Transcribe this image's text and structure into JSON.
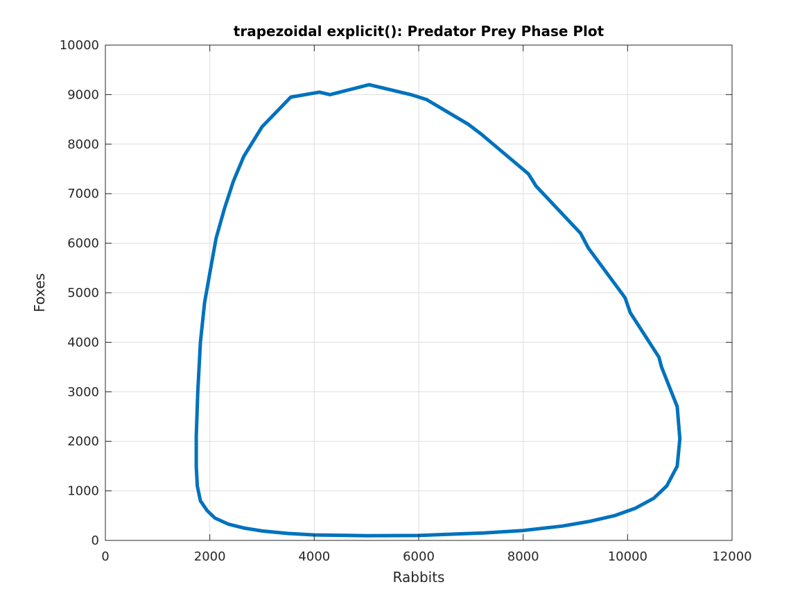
{
  "chart_data": {
    "type": "line",
    "title": "trapezoidal explicit(): Predator Prey Phase Plot",
    "xlabel": "Rabbits",
    "ylabel": "Foxes",
    "xlim": [
      0,
      12000
    ],
    "ylim": [
      0,
      10000
    ],
    "xticks": [
      0,
      2000,
      4000,
      6000,
      8000,
      10000,
      12000
    ],
    "yticks": [
      0,
      1000,
      2000,
      3000,
      4000,
      5000,
      6000,
      7000,
      8000,
      9000,
      10000
    ],
    "xtick_labels": [
      "0",
      "2000",
      "4000",
      "6000",
      "8000",
      "10000",
      "12000"
    ],
    "ytick_labels": [
      "0",
      "1000",
      "2000",
      "3000",
      "4000",
      "5000",
      "6000",
      "7000",
      "8000",
      "9000",
      "10000"
    ],
    "grid": true,
    "series": [
      {
        "color": "#0072bd",
        "x": [
          11000,
          10950,
          10750,
          10500,
          10150,
          9750,
          9250,
          8750,
          8000,
          7250,
          6500,
          6000,
          5000,
          4000,
          3500,
          3000,
          2650,
          2350,
          2100,
          1950,
          1820,
          1760,
          1740,
          1740,
          1770,
          1820,
          1900,
          2000,
          2120,
          2280,
          2450,
          2650,
          3000,
          3550,
          4100,
          4300,
          5050,
          5850,
          6150,
          6950,
          7200,
          8100,
          8250,
          9100,
          9250,
          9950,
          10050,
          10600,
          10650,
          10950,
          11000
        ],
        "y": [
          2050,
          1500,
          1100,
          850,
          650,
          500,
          380,
          290,
          200,
          150,
          120,
          100,
          95,
          110,
          140,
          190,
          250,
          330,
          450,
          600,
          800,
          1100,
          1500,
          2100,
          3000,
          4000,
          4800,
          5400,
          6100,
          6700,
          7250,
          7750,
          8350,
          8950,
          9050,
          9000,
          9200,
          9000,
          8900,
          8400,
          8200,
          7400,
          7150,
          6200,
          5900,
          4900,
          4600,
          3700,
          3500,
          2700,
          2050
        ]
      }
    ]
  }
}
